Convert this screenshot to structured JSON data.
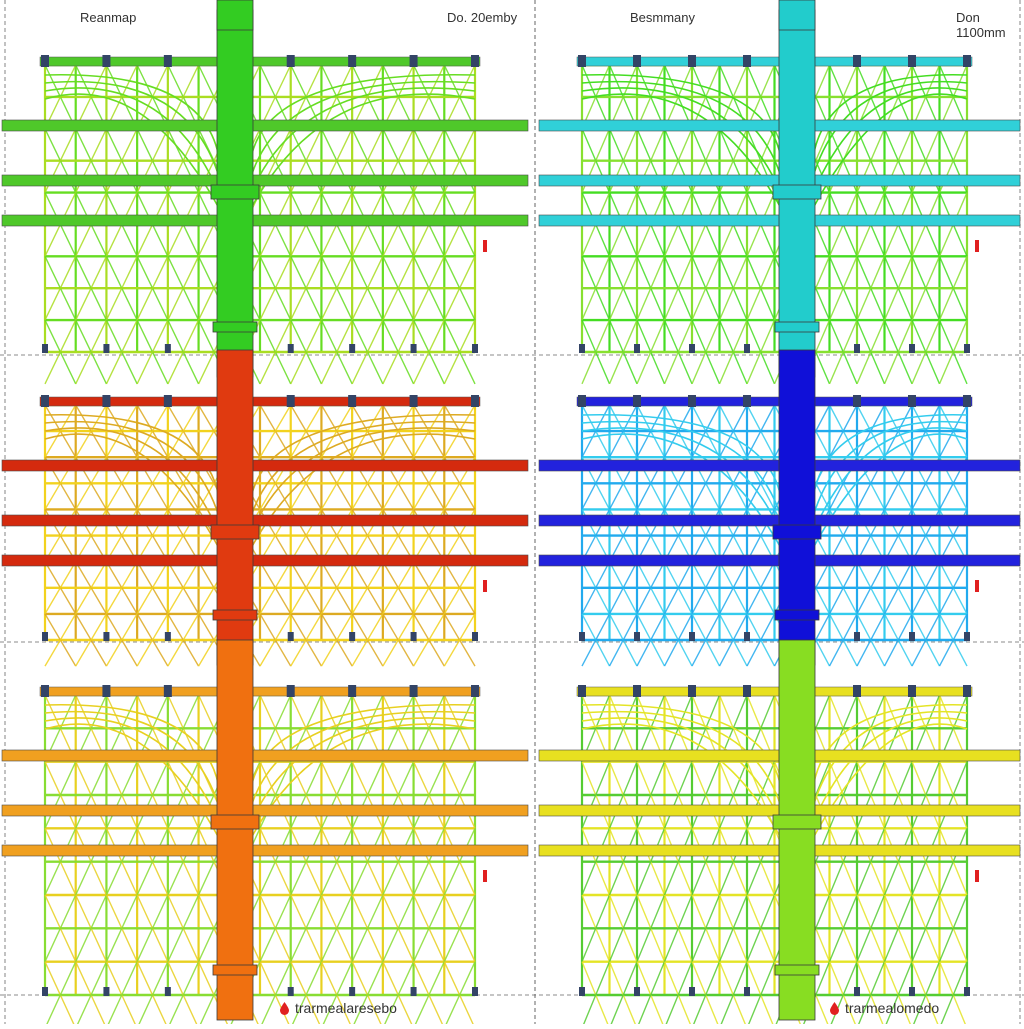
{
  "panels": [
    {
      "id": "left",
      "header_left": "Reanmap",
      "header_right": "Do. 20emby",
      "footer_label": "trarmealaresebo",
      "row_colors": [
        {
          "column": "#33cc22",
          "beams": "#4fc82a",
          "truss_a": "#66dd22",
          "truss_b": "#aadd22"
        },
        {
          "column": "#e03a10",
          "beams": "#d42a0e",
          "truss_a": "#ddaa22",
          "truss_b": "#f2d21e"
        },
        {
          "column": "#f07010",
          "beams": "#f0a020",
          "truss_a": "#e8d020",
          "truss_b": "#88dd33"
        }
      ]
    },
    {
      "id": "right",
      "header_left": "Besmmany",
      "header_right": "Don 1100mm",
      "footer_label": "trarmealomedo",
      "row_colors": [
        {
          "column": "#22cccc",
          "beams": "#30d0d8",
          "truss_a": "#44dd22",
          "truss_b": "#88e030"
        },
        {
          "column": "#1010d8",
          "beams": "#2222dd",
          "truss_a": "#33ccee",
          "truss_b": "#22aaee"
        },
        {
          "column": "#88dd22",
          "beams": "#e8e020",
          "truss_a": "#e4e426",
          "truss_b": "#55cc33"
        }
      ]
    }
  ],
  "colors": {
    "frame_line": "#666666",
    "node": "#334466",
    "marker": "#e02020"
  },
  "icons": {
    "footer_marker": "droplet-marker-icon"
  }
}
